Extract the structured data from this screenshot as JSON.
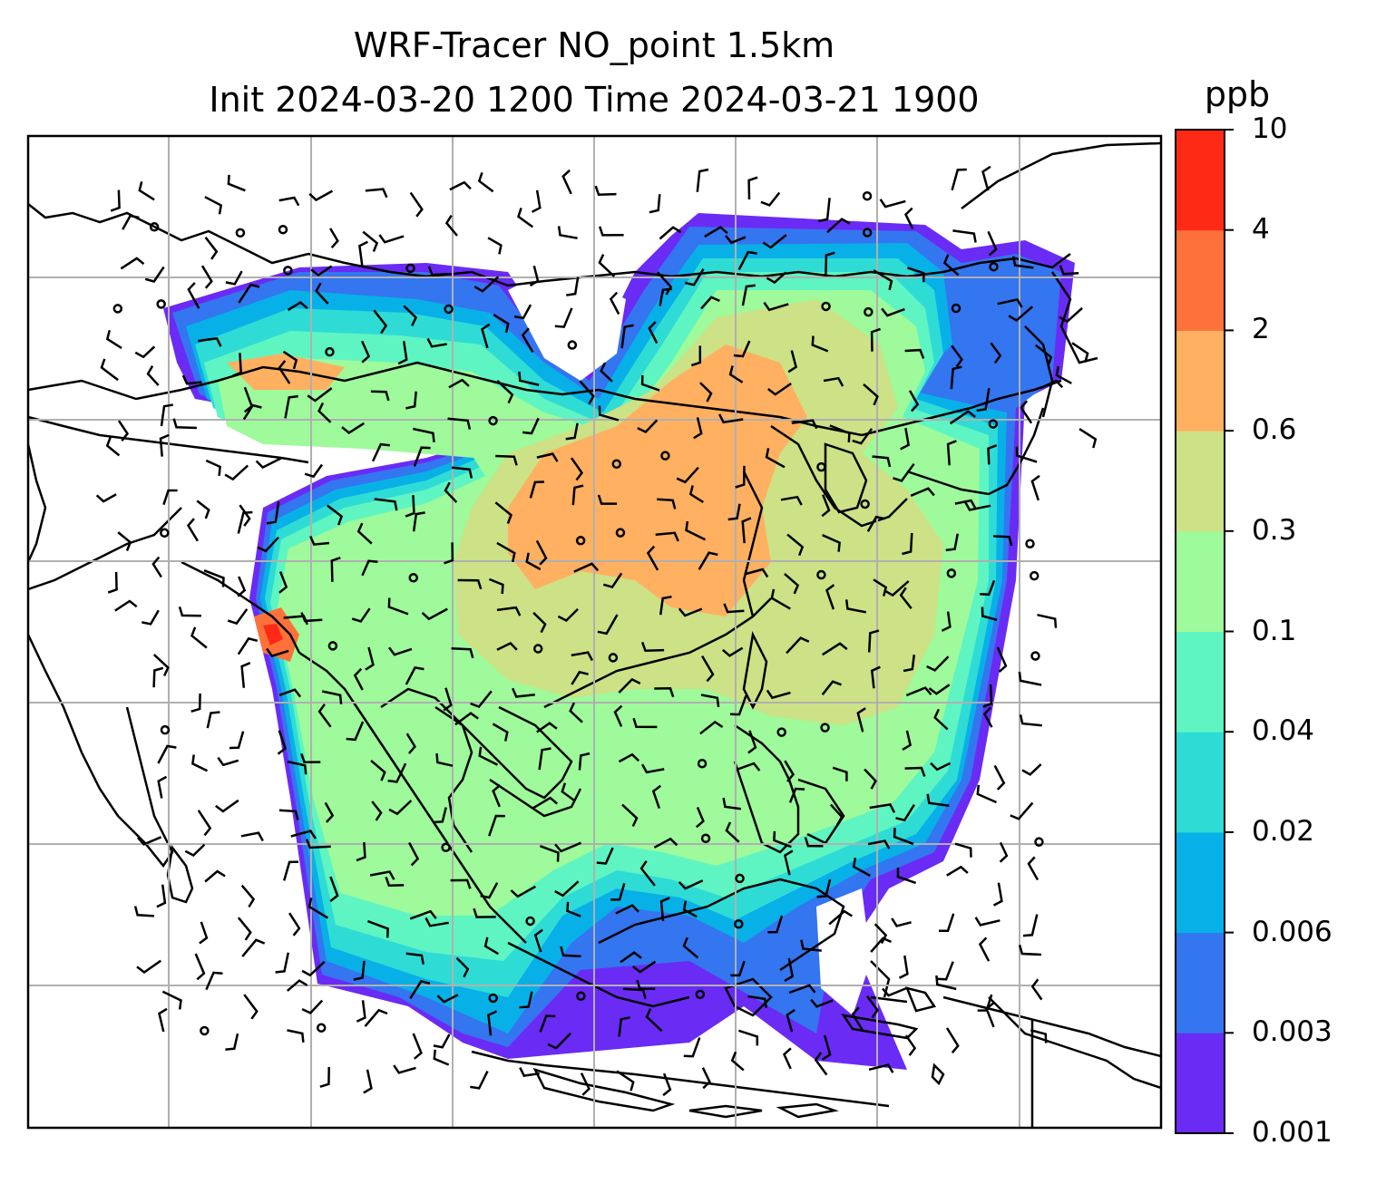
{
  "title": {
    "line1": "WRF-Tracer NO_point 1.5km",
    "line2": "Init 2024-03-20 1200 Time 2024-03-21 1900"
  },
  "colorbar": {
    "unit": "ppb",
    "ticks": [
      "0.001",
      "0.003",
      "0.006",
      "0.02",
      "0.04",
      "0.1",
      "0.3",
      "0.6",
      "2",
      "4",
      "10"
    ],
    "colors": [
      "#6a2bf5",
      "#3475f0",
      "#08b0e8",
      "#2fdcd5",
      "#5ff5c2",
      "#9efa9a",
      "#cde186",
      "#ffb060",
      "#ff713a",
      "#ff2a16"
    ]
  },
  "map": {
    "colors": {
      "coast": "#000000",
      "grid": "#b0b0b0",
      "barb": "#000000"
    }
  }
}
